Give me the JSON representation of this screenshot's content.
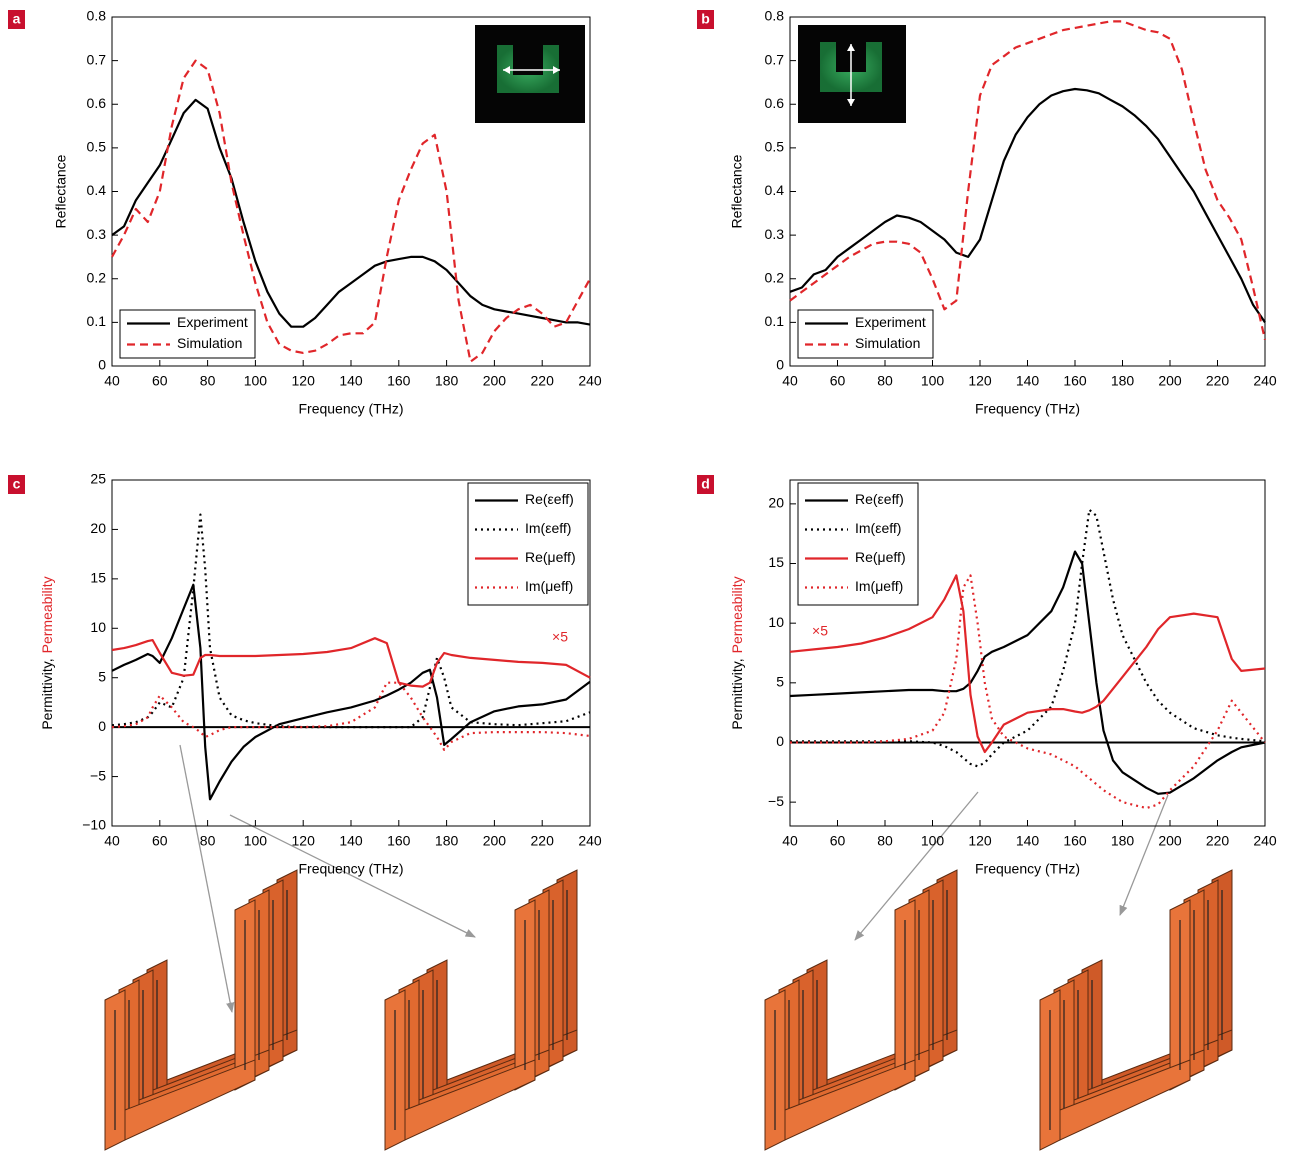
{
  "chart_data": [
    {
      "type": "line",
      "panel_label": "a",
      "xlabel": "Frequency (THz)",
      "ylabel": "Reflectance",
      "xlim": [
        40,
        240
      ],
      "xticks": [
        40,
        60,
        80,
        100,
        120,
        140,
        160,
        180,
        200,
        220,
        240
      ],
      "ylim": [
        0,
        0.8
      ],
      "yticks": [
        0,
        0.1,
        0.2,
        0.3,
        0.4,
        0.5,
        0.6,
        0.7,
        0.8
      ],
      "legend": "lower left",
      "x": [
        40,
        45,
        50,
        55,
        60,
        65,
        70,
        75,
        80,
        85,
        90,
        95,
        100,
        105,
        110,
        115,
        120,
        125,
        130,
        135,
        140,
        145,
        150,
        155,
        160,
        165,
        170,
        175,
        180,
        185,
        190,
        195,
        200,
        205,
        210,
        215,
        220,
        225,
        230,
        235,
        240
      ],
      "series": [
        {
          "name": "Experiment",
          "color": "#000000",
          "dash": "solid",
          "values": [
            0.3,
            0.32,
            0.38,
            0.42,
            0.46,
            0.52,
            0.58,
            0.61,
            0.59,
            0.5,
            0.43,
            0.33,
            0.24,
            0.17,
            0.12,
            0.09,
            0.09,
            0.11,
            0.14,
            0.17,
            0.19,
            0.21,
            0.23,
            0.24,
            0.245,
            0.25,
            0.25,
            0.24,
            0.22,
            0.19,
            0.16,
            0.14,
            0.13,
            0.125,
            0.12,
            0.115,
            0.11,
            0.105,
            0.1,
            0.1,
            0.095
          ]
        },
        {
          "name": "Simulation",
          "color": "#e0262a",
          "dash": "dashed",
          "values": [
            0.25,
            0.3,
            0.36,
            0.33,
            0.4,
            0.55,
            0.66,
            0.7,
            0.68,
            0.58,
            0.42,
            0.3,
            0.19,
            0.1,
            0.05,
            0.035,
            0.03,
            0.035,
            0.05,
            0.07,
            0.075,
            0.075,
            0.1,
            0.25,
            0.38,
            0.45,
            0.51,
            0.53,
            0.4,
            0.15,
            0.01,
            0.03,
            0.08,
            0.11,
            0.13,
            0.14,
            0.12,
            0.09,
            0.1,
            0.15,
            0.2
          ]
        }
      ]
    },
    {
      "type": "line",
      "panel_label": "b",
      "xlabel": "Frequency (THz)",
      "ylabel": "Reflectance",
      "xlim": [
        40,
        240
      ],
      "xticks": [
        40,
        60,
        80,
        100,
        120,
        140,
        160,
        180,
        200,
        220,
        240
      ],
      "ylim": [
        0,
        0.8
      ],
      "yticks": [
        0,
        0.1,
        0.2,
        0.3,
        0.4,
        0.5,
        0.6,
        0.7,
        0.8
      ],
      "legend": "lower left",
      "x": [
        40,
        45,
        50,
        55,
        60,
        65,
        70,
        75,
        80,
        85,
        90,
        95,
        100,
        105,
        110,
        115,
        120,
        125,
        130,
        135,
        140,
        145,
        150,
        155,
        160,
        165,
        170,
        175,
        180,
        185,
        190,
        195,
        200,
        205,
        210,
        215,
        220,
        225,
        230,
        235,
        240
      ],
      "series": [
        {
          "name": "Experiment",
          "color": "#000000",
          "dash": "solid",
          "values": [
            0.17,
            0.18,
            0.21,
            0.22,
            0.25,
            0.27,
            0.29,
            0.31,
            0.33,
            0.345,
            0.34,
            0.33,
            0.31,
            0.29,
            0.26,
            0.25,
            0.29,
            0.38,
            0.47,
            0.53,
            0.57,
            0.6,
            0.62,
            0.63,
            0.635,
            0.632,
            0.625,
            0.61,
            0.595,
            0.575,
            0.55,
            0.52,
            0.48,
            0.44,
            0.4,
            0.35,
            0.3,
            0.25,
            0.2,
            0.14,
            0.1
          ]
        },
        {
          "name": "Simulation",
          "color": "#e0262a",
          "dash": "dashed",
          "values": [
            0.15,
            0.17,
            0.19,
            0.21,
            0.23,
            0.25,
            0.265,
            0.28,
            0.285,
            0.285,
            0.28,
            0.26,
            0.2,
            0.13,
            0.15,
            0.4,
            0.62,
            0.69,
            0.71,
            0.73,
            0.74,
            0.75,
            0.76,
            0.77,
            0.775,
            0.78,
            0.785,
            0.79,
            0.79,
            0.78,
            0.77,
            0.765,
            0.75,
            0.68,
            0.56,
            0.45,
            0.38,
            0.34,
            0.29,
            0.18,
            0.06
          ]
        }
      ]
    },
    {
      "type": "line",
      "panel_label": "c",
      "xlabel": "Frequency (THz)",
      "ylabel_parts": [
        {
          "text": "Permittivity,",
          "color": "#000000"
        },
        {
          "text": "Permeability",
          "color": "#e0262a"
        }
      ],
      "annotation": {
        "text": "×5",
        "color": "#e0262a"
      },
      "hline": 0,
      "xlim": [
        40,
        240
      ],
      "xticks": [
        40,
        60,
        80,
        100,
        120,
        140,
        160,
        180,
        200,
        220,
        240
      ],
      "ylim": [
        -10,
        25
      ],
      "yticks": [
        {
          "value": -10,
          "label": "−10"
        },
        {
          "value": -5,
          "label": "−5"
        },
        0,
        5,
        10,
        15,
        20,
        25
      ],
      "legend": "upper right",
      "x": [
        40,
        45,
        50,
        55,
        57,
        60,
        65,
        70,
        74,
        77,
        79,
        81,
        85,
        90,
        95,
        100,
        110,
        120,
        130,
        140,
        150,
        155,
        160,
        165,
        170,
        173,
        176,
        179,
        182,
        190,
        200,
        210,
        220,
        230,
        240
      ],
      "series": [
        {
          "name": "Re(εeff)",
          "color": "#000000",
          "dash": "solid",
          "values": [
            5.7,
            6.3,
            6.8,
            7.4,
            7.2,
            6.5,
            9,
            12,
            14.4,
            8,
            -2,
            -7.3,
            -5.5,
            -3.5,
            -2,
            -1,
            0.3,
            0.9,
            1.5,
            2.0,
            2.7,
            3.2,
            3.8,
            4.5,
            5.5,
            5.8,
            3,
            -1.8,
            -1.2,
            0.5,
            1.6,
            2.1,
            2.3,
            2.8,
            4.6
          ]
        },
        {
          "name": "Im(εeff)",
          "color": "#000000",
          "dash": "dotted",
          "values": [
            0.2,
            0.3,
            0.5,
            1,
            1.5,
            2.5,
            2,
            5,
            14,
            21.5,
            16,
            8,
            3,
            1.2,
            0.7,
            0.4,
            0.1,
            0,
            0,
            0,
            0,
            0,
            0,
            0,
            1,
            4,
            7,
            5,
            2,
            0.5,
            0.3,
            0.2,
            0.4,
            0.6,
            1.5
          ]
        },
        {
          "name": "Re(μeff)",
          "color": "#e0262a",
          "dash": "solid",
          "values": [
            7.8,
            8,
            8.3,
            8.7,
            8.8,
            7.5,
            5.5,
            5.2,
            5.3,
            7,
            7.3,
            7.3,
            7.2,
            7.2,
            7.2,
            7.2,
            7.3,
            7.4,
            7.6,
            8,
            9,
            8.5,
            4.5,
            4.2,
            4.1,
            4.5,
            6.5,
            7.5,
            7.3,
            7,
            6.8,
            6.6,
            6.5,
            6.3,
            5
          ]
        },
        {
          "name": "Im(μeff)",
          "color": "#e0262a",
          "dash": "dotted",
          "values": [
            0,
            0.1,
            0.3,
            1,
            2,
            3.2,
            2,
            0.5,
            0,
            -0.5,
            -1,
            -0.8,
            -0.3,
            0,
            0,
            0,
            0,
            0,
            0.1,
            0.5,
            2,
            4.5,
            4.5,
            3,
            1,
            0,
            -1,
            -2.3,
            -1.5,
            -0.6,
            -0.5,
            -0.5,
            -0.5,
            -0.6,
            -0.9
          ]
        }
      ]
    },
    {
      "type": "line",
      "panel_label": "d",
      "xlabel": "Frequency (THz)",
      "ylabel_parts": [
        {
          "text": "Permittivity,",
          "color": "#000000"
        },
        {
          "text": "Permeability",
          "color": "#e0262a"
        }
      ],
      "annotation": {
        "text": "×5",
        "color": "#e0262a"
      },
      "hline": 0,
      "xlim": [
        40,
        240
      ],
      "xticks": [
        40,
        60,
        80,
        100,
        120,
        140,
        160,
        180,
        200,
        220,
        240
      ],
      "ylim": [
        -7,
        22
      ],
      "yticks": [
        {
          "value": -5,
          "label": "−5"
        },
        0,
        5,
        10,
        15,
        20
      ],
      "legend": "upper left",
      "x": [
        40,
        50,
        60,
        70,
        80,
        90,
        100,
        105,
        110,
        113,
        116,
        119,
        122,
        125,
        130,
        140,
        150,
        155,
        160,
        163,
        166,
        169,
        172,
        176,
        180,
        190,
        195,
        200,
        210,
        220,
        226,
        230,
        240
      ],
      "series": [
        {
          "name": "Re(εeff)",
          "color": "#000000",
          "dash": "solid",
          "values": [
            3.9,
            4,
            4.1,
            4.2,
            4.3,
            4.4,
            4.4,
            4.3,
            4.3,
            4.5,
            5,
            6,
            7.2,
            7.6,
            8,
            9,
            11,
            13,
            16,
            15,
            10,
            5,
            1,
            -1.5,
            -2.5,
            -3.8,
            -4.3,
            -4.2,
            -3,
            -1.5,
            -0.8,
            -0.4,
            0
          ]
        },
        {
          "name": "Im(εeff)",
          "color": "#000000",
          "dash": "dotted",
          "values": [
            0.1,
            0.1,
            0.1,
            0.1,
            0.1,
            0.1,
            0,
            -0.3,
            -0.8,
            -1.3,
            -1.8,
            -2,
            -1.7,
            -1,
            0,
            1,
            3,
            6,
            10,
            15,
            19.5,
            19,
            16,
            12,
            9,
            5,
            3.5,
            2.5,
            1.2,
            0.6,
            0.4,
            0.3,
            0.1
          ]
        },
        {
          "name": "Re(μeff)",
          "color": "#e0262a",
          "dash": "solid",
          "values": [
            7.6,
            7.8,
            8,
            8.3,
            8.8,
            9.5,
            10.5,
            12,
            14,
            11,
            4,
            0.5,
            -0.8,
            0,
            1.5,
            2.5,
            2.8,
            2.8,
            2.6,
            2.5,
            2.7,
            3,
            3.5,
            4.5,
            5.5,
            8,
            9.5,
            10.5,
            10.8,
            10.5,
            7,
            6,
            6.2
          ]
        },
        {
          "name": "Im(μeff)",
          "color": "#e0262a",
          "dash": "dotted",
          "values": [
            0,
            0,
            0,
            0,
            0.1,
            0.3,
            1,
            2.5,
            7,
            13,
            14,
            10,
            5,
            2,
            0.5,
            -0.5,
            -1,
            -1.5,
            -2,
            -2.5,
            -3,
            -3.5,
            -4,
            -4.5,
            -5,
            -5.5,
            -5.2,
            -4,
            -2,
            1,
            3.5,
            2.5,
            0
          ]
        }
      ]
    }
  ]
}
